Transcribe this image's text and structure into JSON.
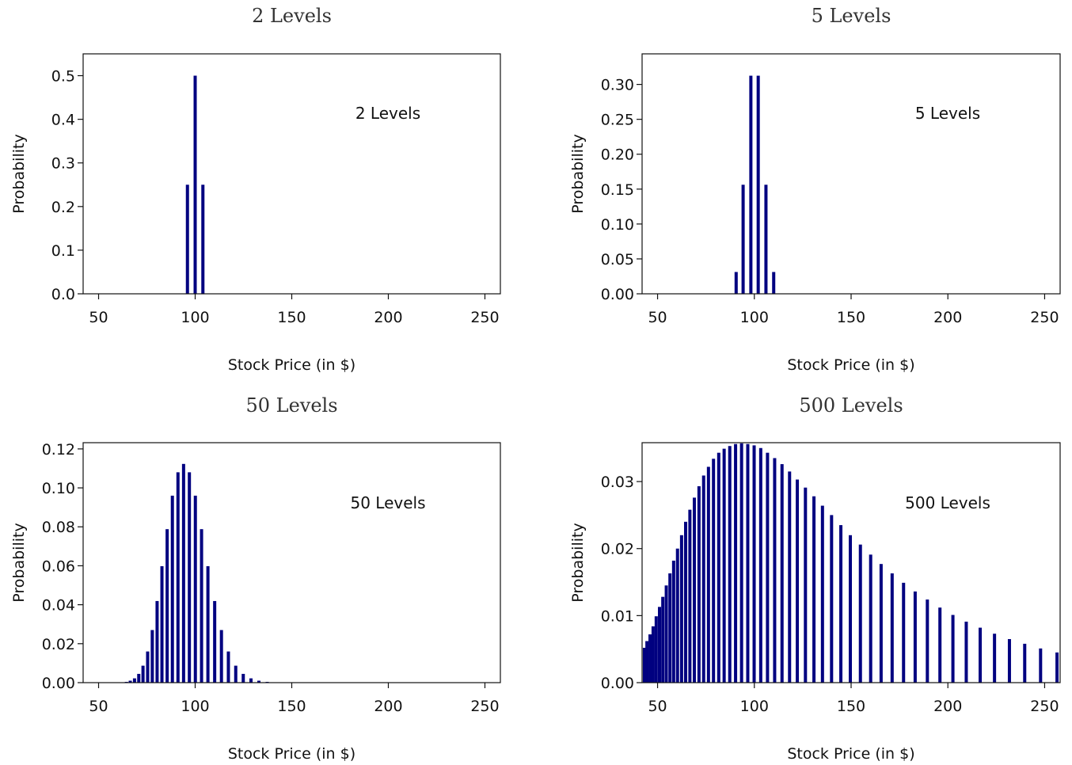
{
  "colors": {
    "bar": "#000080",
    "axis": "#111111",
    "background": "#ffffff"
  },
  "chart_data": [
    {
      "type": "bar",
      "title": "2 Levels",
      "annotation": "2 Levels",
      "xlabel": "Stock Price (in $)",
      "ylabel": "Probability",
      "xlim": [
        42,
        258
      ],
      "ylim": [
        0,
        0.55
      ],
      "xticks": [
        "50",
        "100",
        "150",
        "200",
        "250"
      ],
      "yticks": [
        "0.0",
        "0.1",
        "0.2",
        "0.3",
        "0.4",
        "0.5"
      ],
      "grid": false,
      "x": [
        96,
        100,
        104
      ],
      "values": [
        0.25,
        0.5,
        0.25
      ]
    },
    {
      "type": "bar",
      "title": "5 Levels",
      "annotation": "5 Levels",
      "xlabel": "Stock Price (in $)",
      "ylabel": "Probability",
      "xlim": [
        42,
        258
      ],
      "ylim": [
        0,
        0.3438
      ],
      "xticks": [
        "50",
        "100",
        "150",
        "200",
        "250"
      ],
      "yticks": [
        "0.00",
        "0.05",
        "0.10",
        "0.15",
        "0.20",
        "0.25",
        "0.30"
      ],
      "grid": false,
      "x": [
        90.6,
        94.2,
        98.2,
        102,
        106,
        110
      ],
      "values": [
        0.03125,
        0.15625,
        0.3125,
        0.3125,
        0.15625,
        0.03125
      ]
    },
    {
      "type": "bar",
      "title": "50 Levels",
      "annotation": "50 Levels",
      "xlabel": "Stock Price (in $)",
      "ylabel": "Probability",
      "xlim": [
        42,
        258
      ],
      "ylim": [
        0,
        0.1232
      ],
      "xticks": [
        "50",
        "100",
        "150",
        "200",
        "250"
      ],
      "yticks": [
        "0.00",
        "0.02",
        "0.04",
        "0.06",
        "0.08",
        "0.10",
        "0.12"
      ],
      "grid": false,
      "x": [
        60.5,
        62.4,
        64.4,
        66.4,
        68.6,
        70.8,
        73.0,
        75.4,
        77.8,
        80.3,
        82.8,
        85.5,
        88.2,
        91.1,
        94.0,
        97.0,
        100.1,
        103.3,
        106.6,
        110.1,
        113.6,
        117.2,
        121.0,
        124.9,
        128.9,
        133.0,
        137.3,
        141.7,
        146.2,
        150.9,
        155.7,
        160.7,
        165.9
      ],
      "values": [
        0.0,
        0.0001,
        0.0004,
        0.001,
        0.0022,
        0.0045,
        0.0087,
        0.016,
        0.027,
        0.0419,
        0.0598,
        0.0788,
        0.096,
        0.108,
        0.1123,
        0.108,
        0.096,
        0.0788,
        0.0598,
        0.0419,
        0.027,
        0.016,
        0.0087,
        0.0045,
        0.0022,
        0.001,
        0.0004,
        0.0001,
        0.0,
        0.0,
        0.0,
        0.0,
        0.0
      ]
    },
    {
      "type": "bar",
      "title": "500 Levels",
      "annotation": "500 Levels",
      "xlabel": "Stock Price (in $)",
      "ylabel": "Probability",
      "xlim": [
        42,
        258
      ],
      "ylim": [
        0,
        0.0358
      ],
      "xticks": [
        "50",
        "100",
        "150",
        "200",
        "250"
      ],
      "yticks": [
        "0.00",
        "0.01",
        "0.02",
        "0.03"
      ],
      "grid": false,
      "x": [
        43.2,
        44.5,
        46.1,
        47.7,
        49.3,
        51.0,
        52.7,
        54.5,
        56.4,
        58.3,
        60.3,
        62.4,
        64.5,
        66.7,
        69.0,
        71.4,
        73.8,
        76.3,
        78.9,
        81.6,
        84.4,
        87.3,
        90.3,
        93.4,
        96.6,
        99.9,
        103.3,
        106.8,
        110.5,
        114.3,
        118.2,
        122.2,
        126.4,
        130.8,
        135.2,
        139.9,
        144.7,
        149.6,
        154.8,
        160.1,
        165.5,
        171.2,
        177.1,
        183.1,
        189.4,
        195.9,
        202.6,
        209.5,
        216.7,
        224.1,
        231.8,
        239.7,
        247.9,
        256.4
      ],
      "values": [
        0.0052,
        0.0062,
        0.0072,
        0.0084,
        0.0099,
        0.0113,
        0.0128,
        0.0145,
        0.0163,
        0.0182,
        0.02,
        0.022,
        0.024,
        0.0258,
        0.0276,
        0.0293,
        0.0309,
        0.0322,
        0.0334,
        0.0343,
        0.0349,
        0.0353,
        0.0356,
        0.0357,
        0.0356,
        0.0354,
        0.035,
        0.0343,
        0.0335,
        0.0326,
        0.0315,
        0.0303,
        0.0291,
        0.0278,
        0.0264,
        0.025,
        0.0235,
        0.022,
        0.0206,
        0.0191,
        0.0177,
        0.0163,
        0.0149,
        0.0136,
        0.0124,
        0.0112,
        0.0101,
        0.0091,
        0.0082,
        0.0073,
        0.0065,
        0.0058,
        0.0051,
        0.0045
      ]
    }
  ]
}
